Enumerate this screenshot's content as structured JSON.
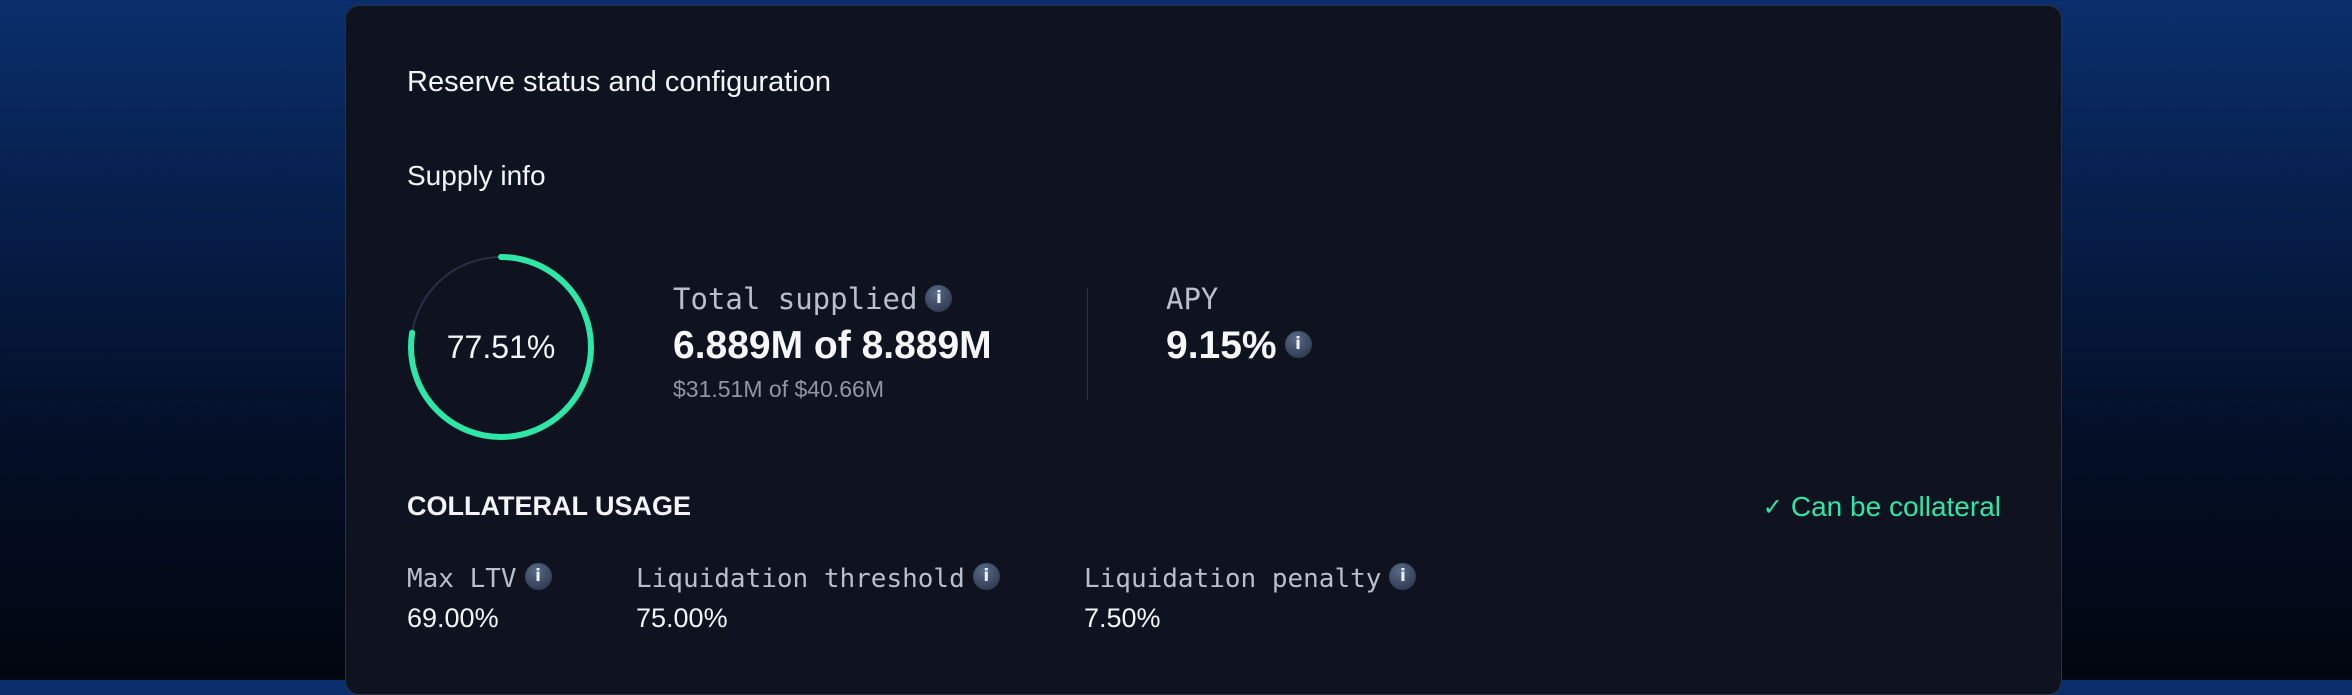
{
  "card": {
    "title": "Reserve status and configuration"
  },
  "supply": {
    "section_title": "Supply info",
    "utilization": {
      "label": "77.51%",
      "fraction": 0.7751,
      "color": "#2ee6a6"
    },
    "total_supplied": {
      "label": "Total supplied",
      "value": "6.889M of 8.889M",
      "usd": "$31.51M of $40.66M",
      "info_icon": "info-icon"
    },
    "apy": {
      "label": "APY",
      "value": "9.15%",
      "info_icon": "info-icon"
    }
  },
  "collateral": {
    "title": "COLLATERAL USAGE",
    "badge": "Can be collateral",
    "badge_icon": "check-icon",
    "badge_color": "#2ee6a6",
    "stats": [
      {
        "label": "Max LTV",
        "value": "69.00%"
      },
      {
        "label": "Liquidation threshold",
        "value": "75.00%"
      },
      {
        "label": "Liquidation penalty",
        "value": "7.50%"
      }
    ]
  }
}
